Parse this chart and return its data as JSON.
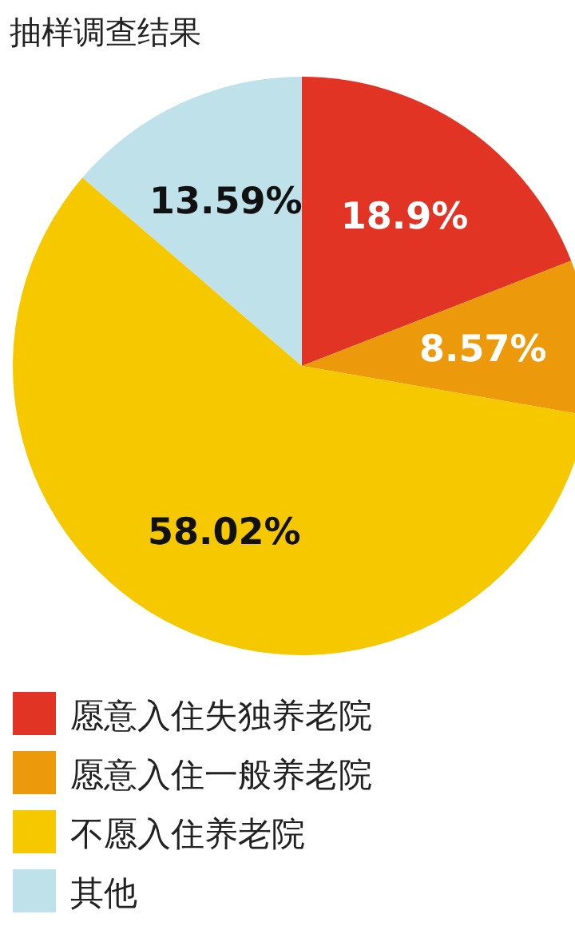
{
  "chart_data": {
    "type": "pie",
    "title": "抽样调查结果",
    "categories": [
      "愿意入住失独养老院",
      "愿意入住一般养老院",
      "不愿入住养老院",
      "其他"
    ],
    "values": [
      18.9,
      8.57,
      58.02,
      13.59
    ],
    "colors": [
      "#e13425",
      "#ec9a0b",
      "#f5c800",
      "#bfe1e9"
    ],
    "value_labels": [
      "18.9%",
      "8.57%",
      "58.02%",
      "13.59%"
    ],
    "legend": "bottom"
  }
}
